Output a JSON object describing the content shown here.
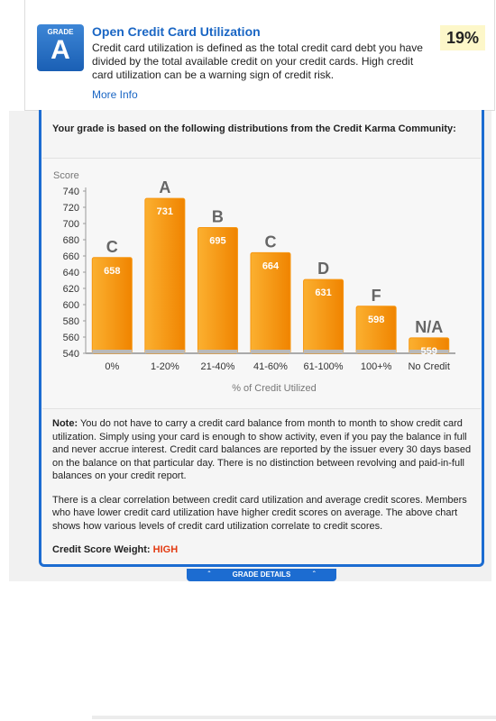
{
  "header": {
    "grade_label": "GRADE",
    "grade": "A",
    "title": "Open Credit Card Utilization",
    "description": "Credit card utilization is defined as the total credit card debt you have divided by the total available credit on your credit cards. High credit card utilization can be a warning sign of credit risk.",
    "link": "More Info",
    "value": "19%"
  },
  "panel": {
    "intro": "Your grade is based on the following distributions from the Credit Karma Community:",
    "note_label": "Note:",
    "note": "You do not have to carry a credit card balance from month to month to show credit card utilization. Simply using your card is enough to show activity, even if you pay the balance in full and never accrue interest. Credit card balances are reported by the issuer every 30 days based on the balance on that particular day. There is no distinction between revolving and paid-in-full balances on your credit report.",
    "paragraph": "There is a clear correlation between credit card utilization and average credit scores. Members who have lower credit card utilization have higher credit scores on average. The above chart shows how various levels of credit card utilization correlate to credit scores.",
    "weight_label": "Credit Score Weight:",
    "weight": "HIGH",
    "tab": "GRADE DETAILS"
  },
  "chart_data": {
    "type": "bar",
    "ylabel": "Score",
    "xlabel": "% of Credit Utilized",
    "categories": [
      "0%",
      "1-20%",
      "21-40%",
      "41-60%",
      "61-100%",
      "100+%",
      "No Credit"
    ],
    "values": [
      658,
      731,
      695,
      664,
      631,
      598,
      559
    ],
    "grades": [
      "C",
      "A",
      "B",
      "C",
      "D",
      "F",
      "N/A"
    ],
    "color": "#f7960f",
    "ylim": [
      540,
      740
    ],
    "yticks": [
      540,
      560,
      580,
      600,
      620,
      640,
      660,
      680,
      700,
      720,
      740
    ]
  }
}
